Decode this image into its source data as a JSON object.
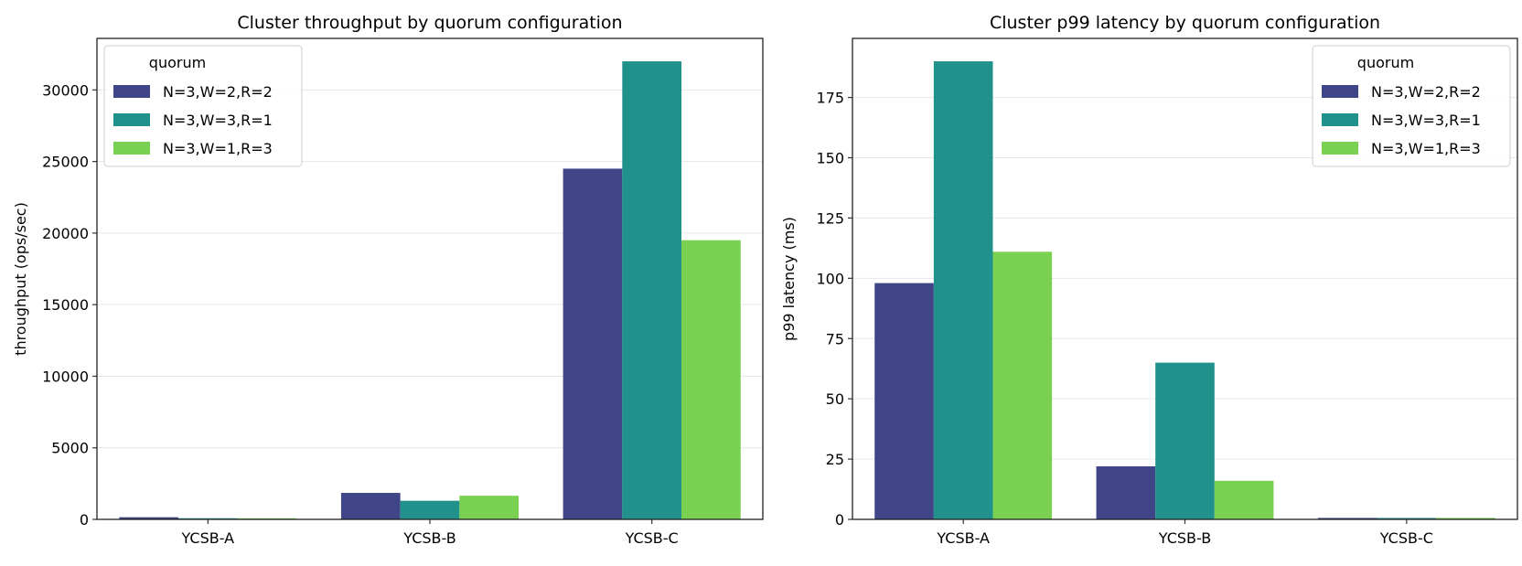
{
  "chart_data": [
    {
      "type": "bar",
      "title": "Cluster throughput by quorum configuration",
      "xlabel": "",
      "ylabel": "throughput (ops/sec)",
      "categories": [
        "YCSB-A",
        "YCSB-B",
        "YCSB-C"
      ],
      "ylim": [
        0,
        33600
      ],
      "yticks": [
        0,
        5000,
        10000,
        15000,
        20000,
        25000,
        30000
      ],
      "grid": "y",
      "legend": {
        "title": "quorum",
        "placement": "top-left"
      },
      "series": [
        {
          "name": "N=3,W=2,R=2",
          "color": "#3f4587",
          "values": [
            150,
            1850,
            24500
          ]
        },
        {
          "name": "N=3,W=3,R=1",
          "color": "#21918c",
          "values": [
            80,
            1300,
            32000
          ]
        },
        {
          "name": "N=3,W=1,R=3",
          "color": "#7ad151",
          "values": [
            75,
            1650,
            19500
          ]
        }
      ]
    },
    {
      "type": "bar",
      "title": "Cluster p99 latency by quorum configuration",
      "xlabel": "",
      "ylabel": "p99 latency (ms)",
      "categories": [
        "YCSB-A",
        "YCSB-B",
        "YCSB-C"
      ],
      "ylim": [
        0,
        199.5
      ],
      "yticks": [
        0,
        25,
        50,
        75,
        100,
        125,
        150,
        175
      ],
      "grid": "y",
      "legend": {
        "title": "quorum",
        "placement": "top-right"
      },
      "series": [
        {
          "name": "N=3,W=2,R=2",
          "color": "#3f4587",
          "values": [
            98,
            22,
            0.6
          ]
        },
        {
          "name": "N=3,W=3,R=1",
          "color": "#21918c",
          "values": [
            190,
            65,
            0.6
          ]
        },
        {
          "name": "N=3,W=1,R=3",
          "color": "#7ad151",
          "values": [
            111,
            16,
            0.6
          ]
        }
      ]
    }
  ]
}
